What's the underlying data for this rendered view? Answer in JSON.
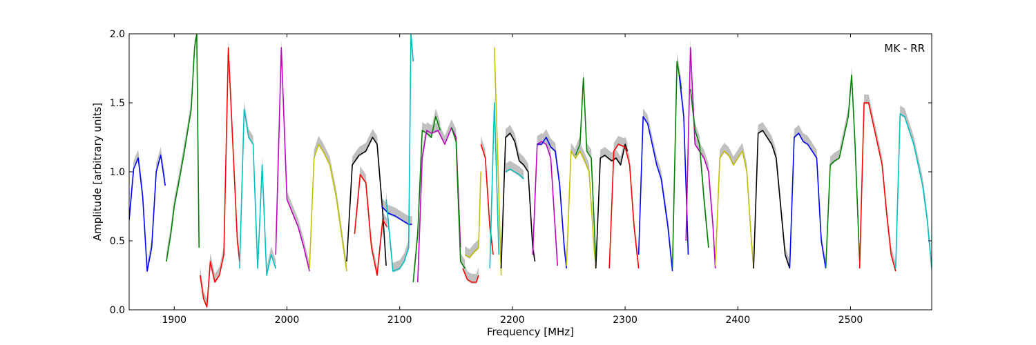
{
  "chart_data": {
    "type": "line",
    "annotation": "MK - RR",
    "xlabel": "Frequency [MHz]",
    "ylabel": "Amplitude [arbitrary units]",
    "xlim": [
      1860,
      2572
    ],
    "ylim": [
      0.0,
      2.0
    ],
    "x_ticks": [
      1900,
      2000,
      2100,
      2200,
      2300,
      2400,
      2500
    ],
    "y_ticks": [
      0.0,
      0.5,
      1.0,
      1.5,
      2.0
    ],
    "y_tick_labels": [
      "0.0",
      "0.5",
      "1.0",
      "1.5",
      "2.0"
    ],
    "grid": false,
    "background_band_color": "#c0c0c0",
    "series": [
      {
        "color": "#0000ff",
        "x": [
          1860,
          1864,
          1868,
          1872,
          1876,
          1880,
          1884,
          1888,
          1892
        ],
        "y": [
          0.65,
          1.02,
          1.1,
          0.82,
          0.28,
          0.45,
          1.0,
          1.12,
          0.9
        ]
      },
      {
        "color": "#008000",
        "x": [
          1893,
          1897,
          1900,
          1904,
          1908,
          1912,
          1915,
          1918,
          1920,
          1922
        ],
        "y": [
          0.35,
          0.55,
          0.75,
          0.92,
          1.1,
          1.3,
          1.45,
          1.9,
          2.0,
          0.45
        ]
      },
      {
        "color": "#ff0000",
        "x": [
          1923,
          1926,
          1929,
          1932,
          1936,
          1940,
          1944,
          1948,
          1952,
          1956,
          1958
        ],
        "y": [
          0.25,
          0.08,
          0.02,
          0.35,
          0.2,
          0.25,
          0.4,
          1.9,
          1.2,
          0.5,
          0.35
        ]
      },
      {
        "color": "#00bfbf",
        "x": [
          1958,
          1962,
          1966,
          1970,
          1974,
          1978,
          1982,
          1986,
          1990
        ],
        "y": [
          0.3,
          1.45,
          1.25,
          1.2,
          0.3,
          1.05,
          0.25,
          0.4,
          0.3
        ]
      },
      {
        "color": "#bf00bf",
        "x": [
          1990,
          1995,
          2000,
          2005,
          2010,
          2015,
          2020
        ],
        "y": [
          0.4,
          1.9,
          0.8,
          0.7,
          0.6,
          0.45,
          0.28
        ]
      },
      {
        "color": "#bfbf00",
        "x": [
          2020,
          2024,
          2028,
          2032,
          2038,
          2044,
          2050,
          2053
        ],
        "y": [
          0.3,
          1.1,
          1.2,
          1.15,
          1.05,
          0.8,
          0.45,
          0.28
        ]
      },
      {
        "color": "#000000",
        "x": [
          2053,
          2058,
          2064,
          2070,
          2076,
          2080,
          2085,
          2088
        ],
        "y": [
          0.35,
          1.05,
          1.12,
          1.15,
          1.25,
          1.2,
          0.7,
          0.32
        ]
      },
      {
        "color": "#ff0000",
        "x": [
          2060,
          2065,
          2070,
          2075,
          2080,
          2085,
          2089
        ],
        "y": [
          0.55,
          0.98,
          0.92,
          0.45,
          0.25,
          0.65,
          0.6
        ]
      },
      {
        "color": "#0000ff",
        "x": [
          2084,
          2090,
          2096,
          2102,
          2108,
          2111
        ],
        "y": [
          0.75,
          0.7,
          0.68,
          0.65,
          0.62,
          0.62
        ]
      },
      {
        "color": "#00bfbf",
        "x": [
          2088,
          2094,
          2100,
          2104,
          2108,
          2110,
          2112
        ],
        "y": [
          0.8,
          0.28,
          0.3,
          0.35,
          0.45,
          2.0,
          1.8
        ]
      },
      {
        "color": "#008000",
        "x": [
          2112,
          2116,
          2120,
          2124,
          2128,
          2132,
          2136
        ],
        "y": [
          0.2,
          0.55,
          1.3,
          1.28,
          1.25,
          1.4,
          1.3
        ]
      },
      {
        "color": "#bf00bf",
        "x": [
          2116,
          2120,
          2124,
          2128,
          2134,
          2140,
          2146,
          2150,
          2154
        ],
        "y": [
          0.2,
          1.1,
          1.3,
          1.28,
          1.3,
          1.2,
          1.32,
          1.25,
          0.45
        ]
      },
      {
        "color": "#008000",
        "x": [
          2146,
          2150,
          2154,
          2158
        ],
        "y": [
          1.32,
          1.22,
          0.35,
          0.3
        ]
      },
      {
        "color": "#bfbf00",
        "x": [
          2158,
          2162,
          2166,
          2170,
          2172
        ],
        "y": [
          0.4,
          0.38,
          0.42,
          0.45,
          1.0
        ]
      },
      {
        "color": "#ff0000",
        "x": [
          2156,
          2160,
          2164,
          2168,
          2170
        ],
        "y": [
          0.3,
          0.22,
          0.2,
          0.2,
          0.25
        ]
      },
      {
        "color": "#ff0000",
        "x": [
          2172,
          2176,
          2180,
          2183
        ],
        "y": [
          1.2,
          1.1,
          0.6,
          0.4
        ]
      },
      {
        "color": "#00bfbf",
        "x": [
          2180,
          2184,
          2188
        ],
        "y": [
          0.3,
          1.5,
          0.4
        ]
      },
      {
        "color": "#bfbf00",
        "x": [
          2184,
          2187,
          2190
        ],
        "y": [
          1.9,
          1.1,
          0.25
        ]
      },
      {
        "color": "#000000",
        "x": [
          2190,
          2194,
          2198,
          2202,
          2206,
          2210,
          2214,
          2218,
          2220
        ],
        "y": [
          0.3,
          1.25,
          1.28,
          1.22,
          1.08,
          1.05,
          1.0,
          0.45,
          0.35
        ]
      },
      {
        "color": "#00bfbf",
        "x": [
          2194,
          2198,
          2202,
          2206,
          2210
        ],
        "y": [
          1.0,
          1.02,
          1.0,
          0.98,
          0.95
        ]
      },
      {
        "color": "#bf00bf",
        "x": [
          2218,
          2222,
          2226,
          2230,
          2234,
          2240
        ],
        "y": [
          0.4,
          1.2,
          1.22,
          1.2,
          1.1,
          0.32
        ]
      },
      {
        "color": "#0000ff",
        "x": [
          2222,
          2226,
          2230,
          2234,
          2238,
          2242,
          2246,
          2248
        ],
        "y": [
          1.2,
          1.2,
          1.25,
          1.18,
          1.15,
          0.9,
          0.45,
          0.3
        ]
      },
      {
        "color": "#bfbf00",
        "x": [
          2248,
          2252,
          2256,
          2260,
          2264,
          2268,
          2272,
          2274
        ],
        "y": [
          0.32,
          1.15,
          1.1,
          1.15,
          1.08,
          1.0,
          0.5,
          0.3
        ]
      },
      {
        "color": "#008000",
        "x": [
          2256,
          2260,
          2263,
          2266,
          2270,
          2274
        ],
        "y": [
          1.12,
          1.2,
          1.68,
          1.15,
          1.1,
          0.35
        ]
      },
      {
        "color": "#000000",
        "x": [
          2274,
          2278,
          2282,
          2288,
          2292,
          2296,
          2300,
          2302
        ],
        "y": [
          0.3,
          1.1,
          1.12,
          1.08,
          1.1,
          1.05,
          1.2,
          1.15
        ]
      },
      {
        "color": "#ff0000",
        "x": [
          2286,
          2290,
          2294,
          2300,
          2304,
          2308,
          2312
        ],
        "y": [
          0.3,
          1.15,
          1.2,
          1.18,
          1.05,
          0.6,
          0.3
        ]
      },
      {
        "color": "#0000ff",
        "x": [
          2312,
          2316,
          2320,
          2324,
          2328,
          2332,
          2338,
          2342
        ],
        "y": [
          0.4,
          1.4,
          1.35,
          1.2,
          1.05,
          0.95,
          0.6,
          0.28
        ]
      },
      {
        "color": "#008000",
        "x": [
          2342,
          2346,
          2350
        ],
        "y": [
          0.3,
          1.8,
          1.6
        ]
      },
      {
        "color": "#0000ff",
        "x": [
          2348,
          2352,
          2356
        ],
        "y": [
          1.7,
          1.4,
          0.4
        ]
      },
      {
        "color": "#bf00bf",
        "x": [
          2354,
          2358,
          2362,
          2366,
          2370,
          2374,
          2378,
          2380
        ],
        "y": [
          0.5,
          1.9,
          1.2,
          1.15,
          1.1,
          1.0,
          0.6,
          0.3
        ]
      },
      {
        "color": "#008000",
        "x": [
          2358,
          2362,
          2366,
          2370,
          2374
        ],
        "y": [
          1.6,
          1.3,
          1.2,
          0.8,
          0.45
        ]
      },
      {
        "color": "#bfbf00",
        "x": [
          2380,
          2384,
          2388,
          2392,
          2396,
          2400,
          2404,
          2408,
          2412,
          2414
        ],
        "y": [
          0.32,
          1.1,
          1.15,
          1.12,
          1.05,
          1.1,
          1.15,
          1.0,
          0.5,
          0.3
        ]
      },
      {
        "color": "#000000",
        "x": [
          2414,
          2418,
          2422,
          2426,
          2430,
          2434,
          2438,
          2442,
          2446
        ],
        "y": [
          0.3,
          1.28,
          1.3,
          1.25,
          1.2,
          1.1,
          0.75,
          0.4,
          0.3
        ]
      },
      {
        "color": "#0000ff",
        "x": [
          2446,
          2450,
          2454,
          2458,
          2462,
          2466,
          2470,
          2474,
          2478
        ],
        "y": [
          0.3,
          1.25,
          1.28,
          1.22,
          1.2,
          1.15,
          1.1,
          0.5,
          0.3
        ]
      },
      {
        "color": "#008000",
        "x": [
          2478,
          2482,
          2486,
          2490,
          2494,
          2498,
          2501,
          2504,
          2508
        ],
        "y": [
          0.3,
          1.05,
          1.08,
          1.1,
          1.25,
          1.4,
          1.7,
          1.2,
          0.35
        ]
      },
      {
        "color": "#ff0000",
        "x": [
          2508,
          2512,
          2516,
          2520,
          2524,
          2528,
          2532,
          2536,
          2540
        ],
        "y": [
          0.3,
          1.5,
          1.5,
          1.35,
          1.2,
          1.05,
          0.7,
          0.4,
          0.28
        ]
      },
      {
        "color": "#00bfbf",
        "x": [
          2540,
          2544,
          2548,
          2552,
          2556,
          2560,
          2564,
          2568,
          2572
        ],
        "y": [
          0.3,
          1.42,
          1.4,
          1.3,
          1.2,
          1.05,
          0.9,
          0.65,
          0.3
        ]
      }
    ]
  }
}
